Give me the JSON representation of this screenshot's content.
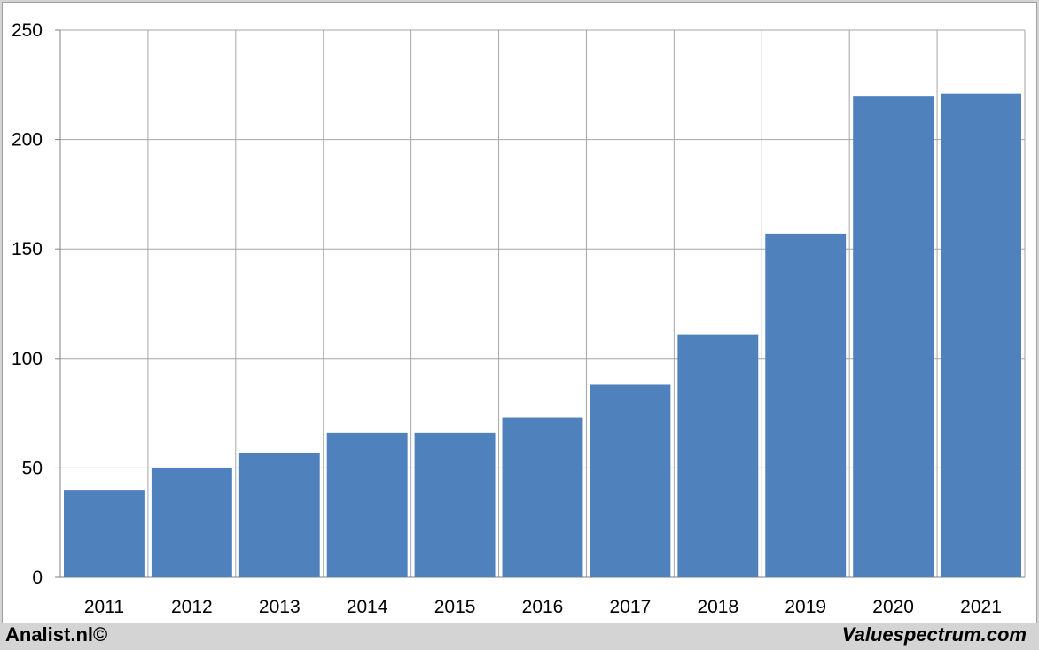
{
  "chart_data": {
    "type": "bar",
    "categories": [
      "2011",
      "2012",
      "2013",
      "2014",
      "2015",
      "2016",
      "2017",
      "2018",
      "2019",
      "2020",
      "2021"
    ],
    "values": [
      40,
      50,
      57,
      66,
      66,
      73,
      88,
      111,
      157,
      220,
      221
    ],
    "title": "",
    "xlabel": "",
    "ylabel": "",
    "ylim": [
      0,
      250
    ],
    "yticks": [
      0,
      50,
      100,
      150,
      200,
      250
    ],
    "grid": true,
    "bar_color": "#4f81bd",
    "grid_color": "#a6a6a6"
  },
  "footer": {
    "left": "Analist.nl©",
    "right": "Valuespectrum.com"
  }
}
